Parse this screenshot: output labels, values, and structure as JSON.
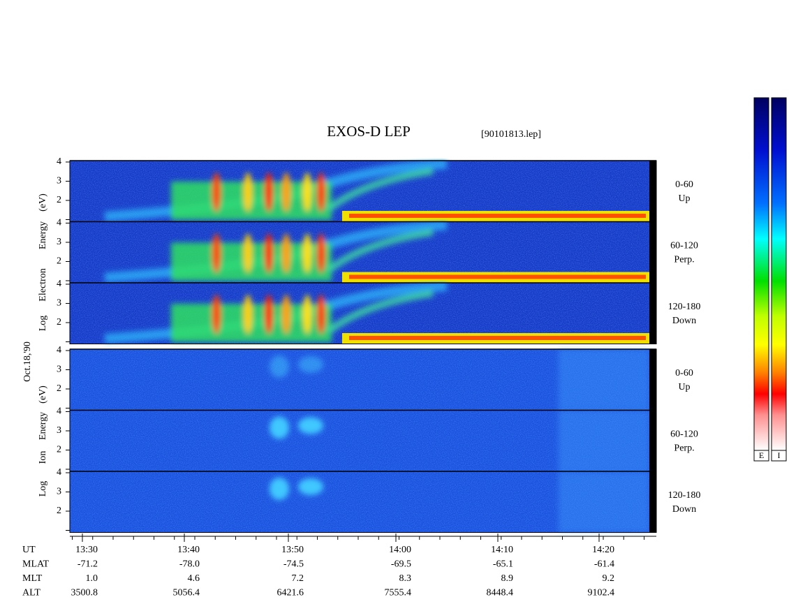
{
  "title": "EXOS-D LEP",
  "file": "[90101813.lep]",
  "date": "Oct.18,'90",
  "electron_axis_label": [
    "Log",
    "Electron",
    "Energy",
    "(eV)"
  ],
  "ion_axis_label": [
    "Log",
    "Ion",
    "Energy",
    "(eV)"
  ],
  "y_tick_labels": [
    "2",
    "3",
    "4"
  ],
  "electron_panels": [
    {
      "angle": "0-60",
      "direction": "Up"
    },
    {
      "angle": "60-120",
      "direction": "Perp."
    },
    {
      "angle": "120-180",
      "direction": "Down"
    }
  ],
  "ion_panels": [
    {
      "angle": "0-60",
      "direction": "Up"
    },
    {
      "angle": "60-120",
      "direction": "Perp."
    },
    {
      "angle": "120-180",
      "direction": "Down"
    }
  ],
  "ephemeris": {
    "rows": [
      {
        "label": "UT",
        "values": [
          "13:30",
          "13:40",
          "13:50",
          "14:00",
          "14:10",
          "14:20"
        ]
      },
      {
        "label": "MLAT",
        "values": [
          "-71.2",
          "-78.0",
          "-74.5",
          "-69.5",
          "-65.1",
          "-61.4"
        ]
      },
      {
        "label": "MLT",
        "values": [
          "1.0",
          "4.6",
          "7.2",
          "8.3",
          "8.9",
          "9.2"
        ]
      },
      {
        "label": "ALT",
        "values": [
          "3500.8",
          "5056.4",
          "6421.6",
          "7555.4",
          "8448.4",
          "9102.4"
        ]
      }
    ]
  },
  "colorbar_labels": [
    "E",
    "I"
  ]
}
